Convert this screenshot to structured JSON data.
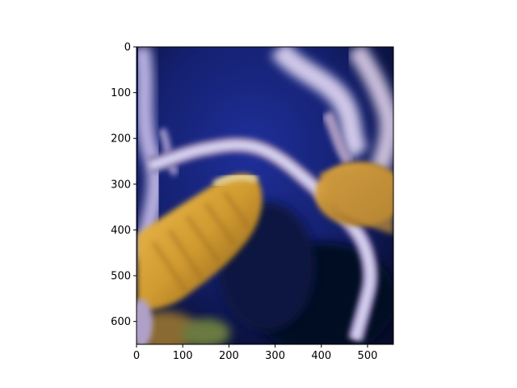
{
  "figure": {
    "image_subject": "jellyfish-underwater",
    "x_axis": {
      "ticks": [
        0,
        100,
        200,
        300,
        400,
        500
      ],
      "range": [
        0,
        556
      ]
    },
    "y_axis": {
      "ticks": [
        0,
        100,
        200,
        300,
        400,
        500,
        600
      ],
      "range": [
        0,
        650
      ],
      "inverted": true
    },
    "colors": {
      "water_deep": "#0a1238",
      "water_blue": "#1a2a8c",
      "tentacle": "#c8c8e8",
      "tentacle_shadow": "#7a6aa0",
      "bell_gold": "#d8a838",
      "bell_orange": "#b87820",
      "bell_shadow": "#6a4a18"
    }
  }
}
